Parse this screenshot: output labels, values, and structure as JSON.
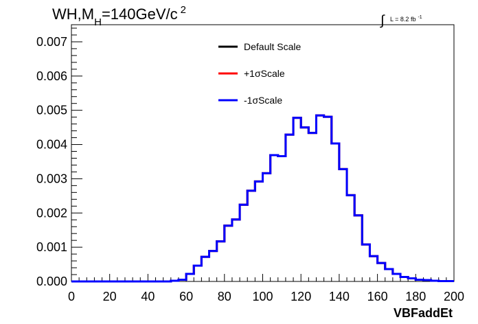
{
  "chart_data": {
    "type": "line",
    "drawstyle": "step",
    "title_main": "WH,M",
    "title_sub": "H",
    "title_rest": "=140GeV/c",
    "title_sup": "2",
    "lumi_main": "L = 8.2 fb",
    "lumi_sup": "-1",
    "xlabel": "VBFaddEt",
    "xlim": [
      0,
      200
    ],
    "ylim": [
      0,
      0.0075
    ],
    "xticks": [
      "0",
      "20",
      "40",
      "60",
      "80",
      "100",
      "120",
      "140",
      "160",
      "180",
      "200"
    ],
    "yticks": [
      "0.000",
      "0.001",
      "0.002",
      "0.003",
      "0.004",
      "0.005",
      "0.006",
      "0.007"
    ],
    "bin_edges": [
      0,
      4,
      8,
      12,
      16,
      20,
      24,
      28,
      32,
      36,
      40,
      44,
      48,
      52,
      56,
      60,
      64,
      68,
      72,
      76,
      80,
      84,
      88,
      92,
      96,
      100,
      104,
      108,
      112,
      116,
      120,
      124,
      128,
      132,
      136,
      140,
      144,
      148,
      152,
      156,
      160,
      164,
      168,
      172,
      176,
      180,
      184,
      188,
      192,
      196,
      200
    ],
    "series": [
      {
        "name": "Default Scale",
        "color": "#000000",
        "values": [
          0,
          0,
          0,
          0,
          0,
          0,
          0,
          0,
          0,
          0,
          0,
          0,
          0,
          2e-05,
          5e-05,
          0.00022,
          0.00046,
          0.00072,
          0.00089,
          0.00117,
          0.00163,
          0.00181,
          0.00224,
          0.00265,
          0.00292,
          0.00316,
          0.00369,
          0.00366,
          0.00429,
          0.00478,
          0.0045,
          0.00434,
          0.00485,
          0.00481,
          0.00403,
          0.00328,
          0.00252,
          0.00193,
          0.00108,
          0.00074,
          0.00054,
          0.00036,
          0.00022,
          0.00013,
          9e-05,
          5e-05,
          4e-05,
          2e-05,
          1e-05,
          1e-05
        ]
      },
      {
        "name": "+1σScale",
        "color": "#ff0000",
        "values": [
          0,
          0,
          0,
          0,
          0,
          0,
          0,
          0,
          0,
          0,
          0,
          0,
          0,
          2e-05,
          5e-05,
          0.00022,
          0.00046,
          0.00072,
          0.00089,
          0.00117,
          0.00163,
          0.00181,
          0.00224,
          0.00265,
          0.00292,
          0.00316,
          0.00369,
          0.00366,
          0.00429,
          0.00478,
          0.0045,
          0.00434,
          0.00485,
          0.00481,
          0.00403,
          0.00328,
          0.00252,
          0.00193,
          0.00108,
          0.00074,
          0.00054,
          0.00036,
          0.00022,
          0.00013,
          9e-05,
          5e-05,
          4e-05,
          2e-05,
          1e-05,
          1e-05
        ]
      },
      {
        "name": "-1σScale",
        "color": "#0000ff",
        "values": [
          0,
          0,
          0,
          0,
          0,
          0,
          0,
          0,
          0,
          0,
          0,
          0,
          0,
          2e-05,
          5e-05,
          0.00022,
          0.00046,
          0.00072,
          0.00089,
          0.00117,
          0.00163,
          0.00181,
          0.00224,
          0.00265,
          0.00292,
          0.00316,
          0.00369,
          0.00366,
          0.00429,
          0.00478,
          0.0045,
          0.00434,
          0.00485,
          0.00481,
          0.00403,
          0.00328,
          0.00252,
          0.00193,
          0.00108,
          0.00074,
          0.00054,
          0.00036,
          0.00022,
          0.00013,
          9e-05,
          5e-05,
          4e-05,
          2e-05,
          1e-05,
          1e-05
        ]
      }
    ],
    "legend_position": "top-center",
    "grid": false
  }
}
